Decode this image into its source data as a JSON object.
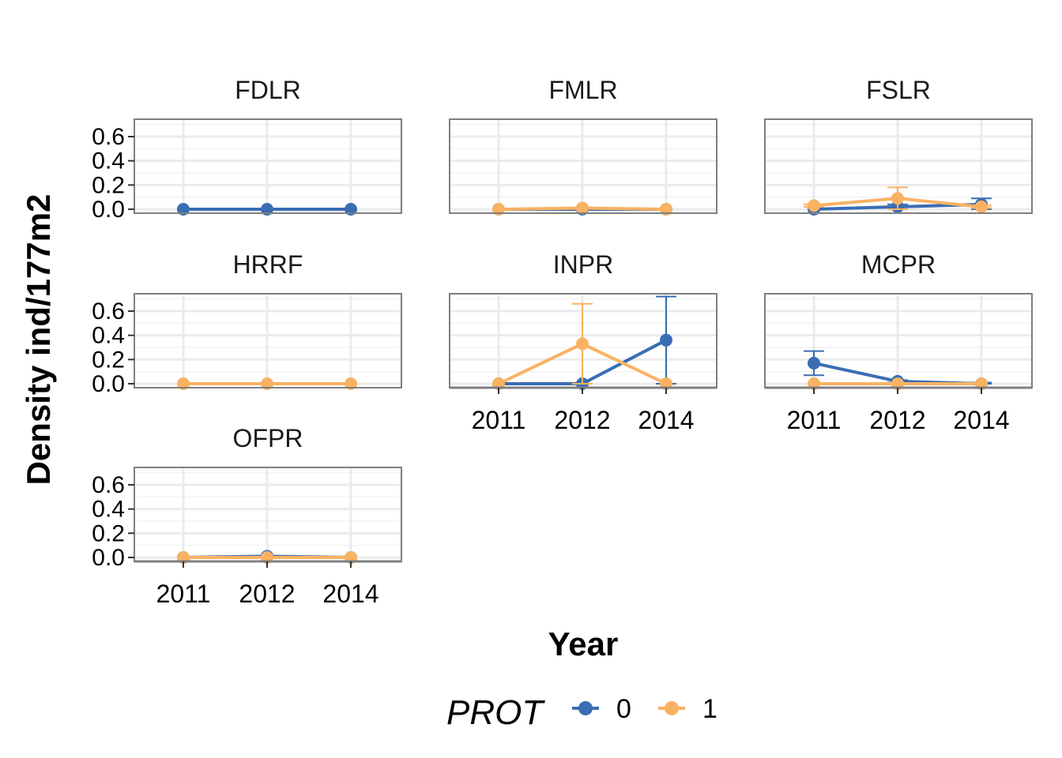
{
  "chart_data": {
    "type": "line",
    "facet_layout": "wrap",
    "xlabel": "Year",
    "ylabel": "Density ind/177m2",
    "x": [
      "2011",
      "2012",
      "2014"
    ],
    "ylim": [
      0,
      0.7
    ],
    "yticks": [
      "0.0",
      "0.2",
      "0.4",
      "0.6"
    ],
    "grid": true,
    "legend": {
      "title": "PROT",
      "position": "bottom",
      "entries": [
        {
          "label": "0",
          "color": "#3a6db4"
        },
        {
          "label": "1",
          "color": "#f9b262"
        }
      ]
    },
    "colors": {
      "0": "#3a6db4",
      "1": "#f9b262"
    },
    "panels": [
      {
        "name": "FDLR",
        "series": [
          {
            "group": "0",
            "values": [
              0.0,
              0.0,
              0.0
            ],
            "error": [
              0,
              0,
              0
            ]
          }
        ]
      },
      {
        "name": "FMLR",
        "series": [
          {
            "group": "0",
            "values": [
              0.0,
              0.0,
              0.0
            ],
            "error": [
              0,
              0,
              0
            ]
          },
          {
            "group": "1",
            "values": [
              0.0,
              0.01,
              0.0
            ],
            "error": [
              0,
              0,
              0
            ]
          }
        ]
      },
      {
        "name": "FSLR",
        "series": [
          {
            "group": "0",
            "values": [
              0.0,
              0.02,
              0.04
            ],
            "error": [
              0,
              0.02,
              0.05
            ]
          },
          {
            "group": "1",
            "values": [
              0.03,
              0.09,
              0.02
            ],
            "error": [
              0.01,
              0.09,
              0.01
            ]
          }
        ]
      },
      {
        "name": "HRRF",
        "series": [
          {
            "group": "1",
            "values": [
              0.0,
              0.0,
              0.0
            ],
            "error": [
              0,
              0,
              0
            ]
          }
        ]
      },
      {
        "name": "INPR",
        "series": [
          {
            "group": "0",
            "values": [
              0.0,
              0.0,
              0.36
            ],
            "error": [
              0,
              0,
              0.36
            ]
          },
          {
            "group": "1",
            "values": [
              0.0,
              0.33,
              0.0
            ],
            "error": [
              0,
              0.33,
              0
            ]
          }
        ]
      },
      {
        "name": "MCPR",
        "series": [
          {
            "group": "0",
            "values": [
              0.17,
              0.02,
              0.0
            ],
            "error": [
              0.1,
              0.01,
              0.01
            ]
          },
          {
            "group": "1",
            "values": [
              0.0,
              0.0,
              0.0
            ],
            "error": [
              0,
              0,
              0
            ]
          }
        ]
      },
      {
        "name": "OFPR",
        "series": [
          {
            "group": "0",
            "values": [
              0.0,
              0.01,
              0.0
            ],
            "error": [
              0,
              0,
              0
            ]
          },
          {
            "group": "1",
            "values": [
              0.0,
              0.0,
              0.0
            ],
            "error": [
              0,
              0,
              0
            ]
          }
        ]
      }
    ]
  }
}
